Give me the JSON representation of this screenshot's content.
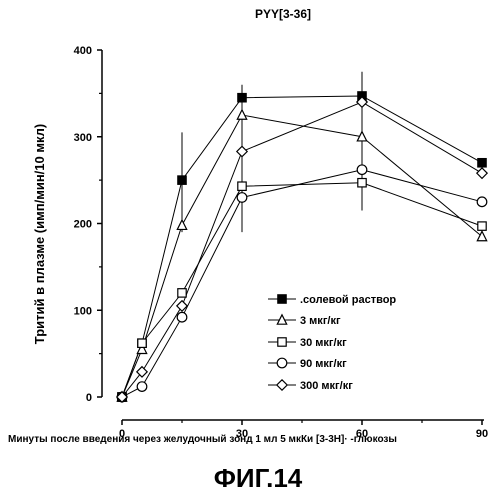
{
  "chart_data": {
    "type": "line",
    "title": "PYY[3-36]",
    "xlabel": "Минуты после введения через желудочный зонд 1 мл 5 мкКи [3-3H]· -глюкозы",
    "ylabel": "Тритий в плазме (имп/мин/10 мкл)",
    "figure_label": "ФИГ.14",
    "x_ticks": [
      "0",
      "30",
      "60",
      "90"
    ],
    "y_ticks": [
      "0",
      "100",
      "200",
      "300",
      "400"
    ],
    "xlim": [
      0,
      93
    ],
    "ylim": [
      0,
      400
    ],
    "grid": false,
    "legend_position": "center-right",
    "series": [
      {
        "name": ".солевой раствор",
        "marker": "square-filled",
        "x": [
          0,
          5,
          15,
          30,
          60,
          90
        ],
        "y": [
          0,
          62,
          250,
          345,
          347,
          270
        ]
      },
      {
        "name": "3 мкг/кг",
        "marker": "triangle-open",
        "x": [
          0,
          5,
          15,
          30,
          60,
          90
        ],
        "y": [
          0,
          55,
          198,
          325,
          300,
          185
        ]
      },
      {
        "name": "30 мкг/кг",
        "marker": "square-open",
        "x": [
          0,
          5,
          15,
          30,
          60,
          90
        ],
        "y": [
          0,
          62,
          120,
          243,
          247,
          197
        ]
      },
      {
        "name": "90 мкг/кг",
        "marker": "circle-open",
        "x": [
          0,
          5,
          15,
          30,
          60,
          90
        ],
        "y": [
          0,
          12,
          92,
          230,
          262,
          225
        ]
      },
      {
        "name": "300 мкг/кг",
        "marker": "diamond-open",
        "x": [
          0,
          5,
          15,
          30,
          60,
          90
        ],
        "y": [
          0,
          29,
          105,
          283,
          340,
          258
        ]
      }
    ],
    "error_bars": [
      {
        "x": 15,
        "low": 190,
        "high": 305
      },
      {
        "x": 30,
        "low": 190,
        "high": 360
      },
      {
        "x": 60,
        "low": 215,
        "high": 375
      }
    ]
  }
}
